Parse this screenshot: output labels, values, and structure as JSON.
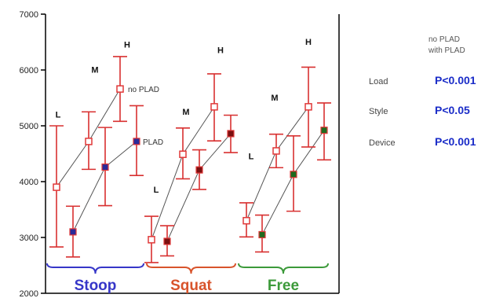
{
  "chart_data": {
    "type": "scatter",
    "y_ticks": [
      2000,
      3000,
      4000,
      5000,
      6000,
      7000
    ],
    "ylim": [
      2000,
      7000
    ],
    "groups": [
      {
        "name": "Stoop",
        "color": "#3636c8",
        "load_labels": [
          {
            "label": "L",
            "y": 5150
          },
          {
            "label": "M",
            "y": 5950
          },
          {
            "label": "H",
            "y": 6400
          }
        ],
        "no_plad": {
          "name": "no PLAD",
          "points": [
            {
              "mean": 3900,
              "low": 2830,
              "high": 5000
            },
            {
              "mean": 4720,
              "low": 4220,
              "high": 5250
            },
            {
              "mean": 5660,
              "low": 5080,
              "high": 6240
            }
          ]
        },
        "with_plad": {
          "name": "PLAD",
          "points": [
            {
              "mean": 3100,
              "low": 2650,
              "high": 3560
            },
            {
              "mean": 4260,
              "low": 3570,
              "high": 4970
            },
            {
              "mean": 4720,
              "low": 4110,
              "high": 5360
            }
          ]
        }
      },
      {
        "name": "Squat",
        "color": "#d8542c",
        "load_labels": [
          {
            "label": "L",
            "y": 3800
          },
          {
            "label": "M",
            "y": 5200
          },
          {
            "label": "H",
            "y": 6300
          }
        ],
        "no_plad": {
          "name": "",
          "points": [
            {
              "mean": 2960,
              "low": 2550,
              "high": 3380
            },
            {
              "mean": 4490,
              "low": 4050,
              "high": 4960
            },
            {
              "mean": 5340,
              "low": 4730,
              "high": 5930
            }
          ]
        },
        "with_plad": {
          "name": "",
          "points": [
            {
              "mean": 2930,
              "low": 2670,
              "high": 3210
            },
            {
              "mean": 4210,
              "low": 3860,
              "high": 4570
            },
            {
              "mean": 4860,
              "low": 4520,
              "high": 5190
            }
          ]
        }
      },
      {
        "name": "Free",
        "color": "#3c9a3a",
        "load_labels": [
          {
            "label": "L",
            "y": 4400
          },
          {
            "label": "M",
            "y": 5450
          },
          {
            "label": "H",
            "y": 6450
          }
        ],
        "no_plad": {
          "name": "",
          "points": [
            {
              "mean": 3300,
              "low": 3010,
              "high": 3620
            },
            {
              "mean": 4550,
              "low": 4250,
              "high": 4850
            },
            {
              "mean": 5340,
              "low": 4620,
              "high": 6050
            }
          ]
        },
        "with_plad": {
          "name": "",
          "points": [
            {
              "mean": 3050,
              "low": 2740,
              "high": 3400
            },
            {
              "mean": 4130,
              "low": 3470,
              "high": 4820
            },
            {
              "mean": 4920,
              "low": 4390,
              "high": 5410
            }
          ]
        }
      }
    ]
  },
  "side_legend": {
    "line1": "no PLAD",
    "line2": "with PLAD"
  },
  "stats": [
    {
      "name": "Load",
      "value": "P<0.001"
    },
    {
      "name": "Style",
      "value": "P<0.05"
    },
    {
      "name": "Device",
      "value": "P<0.001"
    }
  ],
  "colors": {
    "no_plad": "#e03838",
    "error_bar": "#d83030",
    "connector": "#555555",
    "stoop_fill": "#2a2a9a",
    "squat_fill": "#7a1010",
    "free_fill": "#1e6a1e"
  }
}
